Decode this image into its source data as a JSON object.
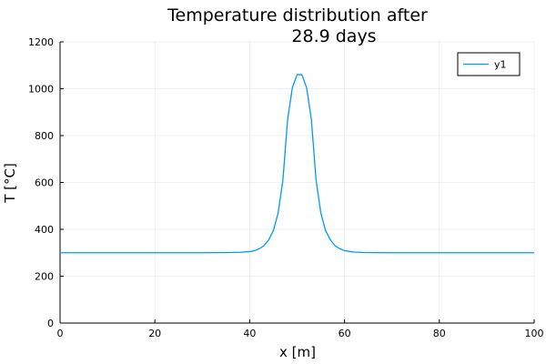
{
  "chart_data": {
    "type": "line",
    "title_lines": [
      "Temperature distribution after",
      "28.9 days"
    ],
    "xlabel": "x [m]",
    "ylabel": "T [°C]",
    "xlim": [
      0,
      100
    ],
    "ylim": [
      0,
      1200
    ],
    "xticks": [
      0,
      20,
      40,
      60,
      80,
      100
    ],
    "yticks": [
      0,
      200,
      400,
      600,
      800,
      1000,
      1200
    ],
    "grid": true,
    "legend_position": "top-right",
    "series": [
      {
        "name": "y1",
        "color": "#009AFA",
        "x": [
          0,
          10,
          20,
          30,
          36,
          38,
          40,
          41,
          42,
          43,
          44,
          45,
          46,
          47,
          48,
          49,
          50,
          51,
          52,
          53,
          54,
          55,
          56,
          57,
          58,
          59,
          60,
          62,
          64,
          70,
          80,
          90,
          100
        ],
        "y": [
          300,
          300,
          300,
          300,
          301,
          302,
          305,
          309,
          317,
          330,
          355,
          395,
          470,
          610,
          870,
          1005,
          1060,
          1060,
          1005,
          870,
          610,
          470,
          395,
          355,
          330,
          317,
          309,
          303,
          301,
          300,
          300,
          300,
          300
        ]
      }
    ]
  }
}
